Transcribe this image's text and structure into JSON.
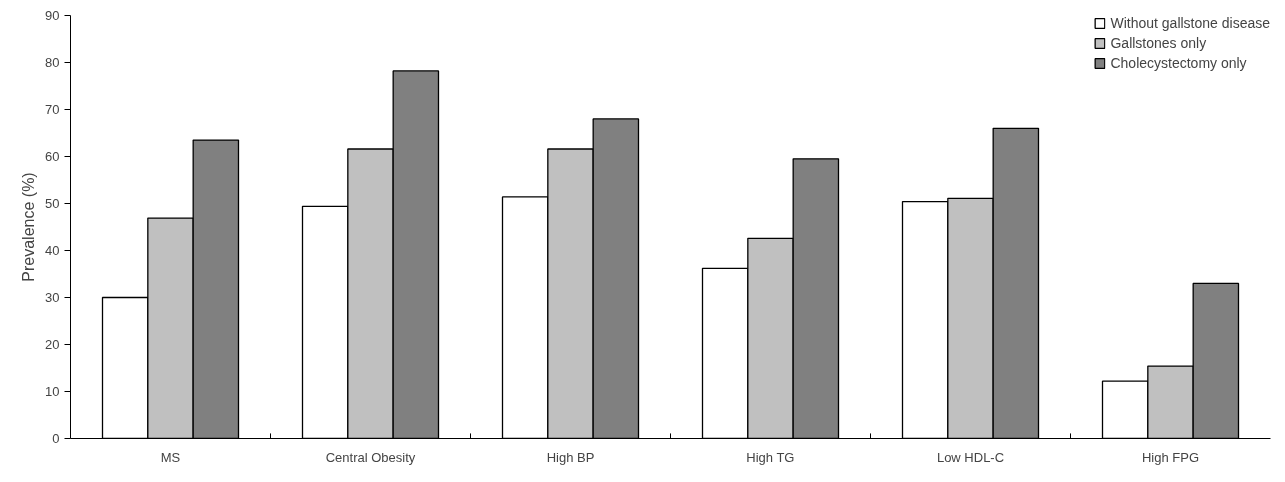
{
  "chart_data": {
    "type": "bar",
    "ylabel": "Prevalence (%)",
    "categories": [
      "MS",
      "Central Obesity",
      "High BP",
      "High TG",
      "Low HDL-C",
      "High FPG"
    ],
    "series": [
      {
        "name": "Without gallstone disease",
        "color": "#ffffff",
        "values": [
          30.0,
          49.4,
          51.4,
          36.2,
          50.4,
          12.2
        ]
      },
      {
        "name": "Gallstones only",
        "color": "#c0c0c0",
        "values": [
          46.9,
          61.6,
          61.6,
          42.6,
          51.1,
          15.4
        ]
      },
      {
        "name": "Cholecystectomy only",
        "color": "#808080",
        "values": [
          63.5,
          78.2,
          68.0,
          59.5,
          66.0,
          33.0
        ]
      }
    ],
    "ylim": [
      0,
      90
    ],
    "yticks": [
      0,
      10,
      20,
      30,
      40,
      50,
      60,
      70,
      80,
      90
    ],
    "grid": false,
    "legend": "top right"
  }
}
